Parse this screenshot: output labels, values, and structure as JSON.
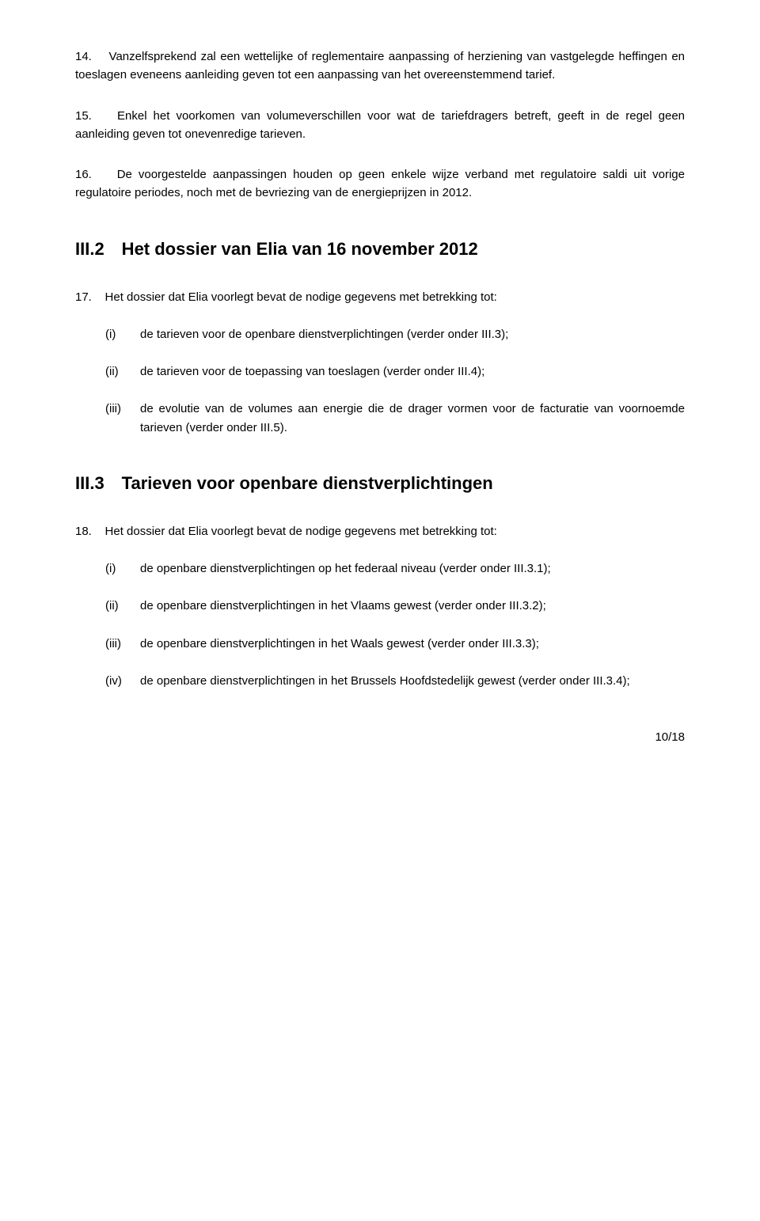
{
  "para14": {
    "num": "14.",
    "text": "Vanzelfsprekend zal een wettelijke of reglementaire aanpassing of herziening van vastgelegde heffingen en toeslagen eveneens aanleiding geven tot een aanpassing van het overeenstemmend tarief."
  },
  "para15": {
    "num": "15.",
    "text": "Enkel het voorkomen van volumeverschillen voor wat de tariefdragers betreft, geeft in de regel geen aanleiding geven tot onevenredige tarieven."
  },
  "para16": {
    "num": "16.",
    "text": "De voorgestelde aanpassingen houden op geen enkele wijze verband met regulatoire saldi uit vorige regulatoire periodes, noch met de bevriezing van de energieprijzen in 2012."
  },
  "section2": {
    "heading": "III.2 Het dossier van Elia van 16 november 2012",
    "para17": {
      "num": "17.",
      "text": "Het dossier dat Elia voorlegt bevat de nodige gegevens met betrekking tot:"
    },
    "items": [
      {
        "marker": "(i)",
        "text": "de tarieven voor de openbare dienstverplichtingen (verder onder III.3);"
      },
      {
        "marker": "(ii)",
        "text": "de tarieven voor de toepassing van toeslagen (verder onder III.4);"
      },
      {
        "marker": "(iii)",
        "text": "de evolutie van de volumes aan energie die de drager vormen voor de facturatie van voornoemde tarieven (verder onder III.5)."
      }
    ]
  },
  "section3": {
    "heading": "III.3 Tarieven voor openbare dienstverplichtingen",
    "para18": {
      "num": "18.",
      "text": "Het dossier dat Elia voorlegt bevat de nodige gegevens met betrekking tot:"
    },
    "items": [
      {
        "marker": "(i)",
        "text": "de openbare dienstverplichtingen op het federaal niveau (verder onder III.3.1);"
      },
      {
        "marker": "(ii)",
        "text": "de openbare dienstverplichtingen in het Vlaams gewest (verder onder III.3.2);"
      },
      {
        "marker": "(iii)",
        "text": "de openbare dienstverplichtingen in het Waals gewest (verder onder III.3.3);"
      },
      {
        "marker": "(iv)",
        "text": "de openbare dienstverplichtingen in het Brussels Hoofdstedelijk gewest (verder onder III.3.4);"
      }
    ]
  },
  "pageNumber": "10/18"
}
